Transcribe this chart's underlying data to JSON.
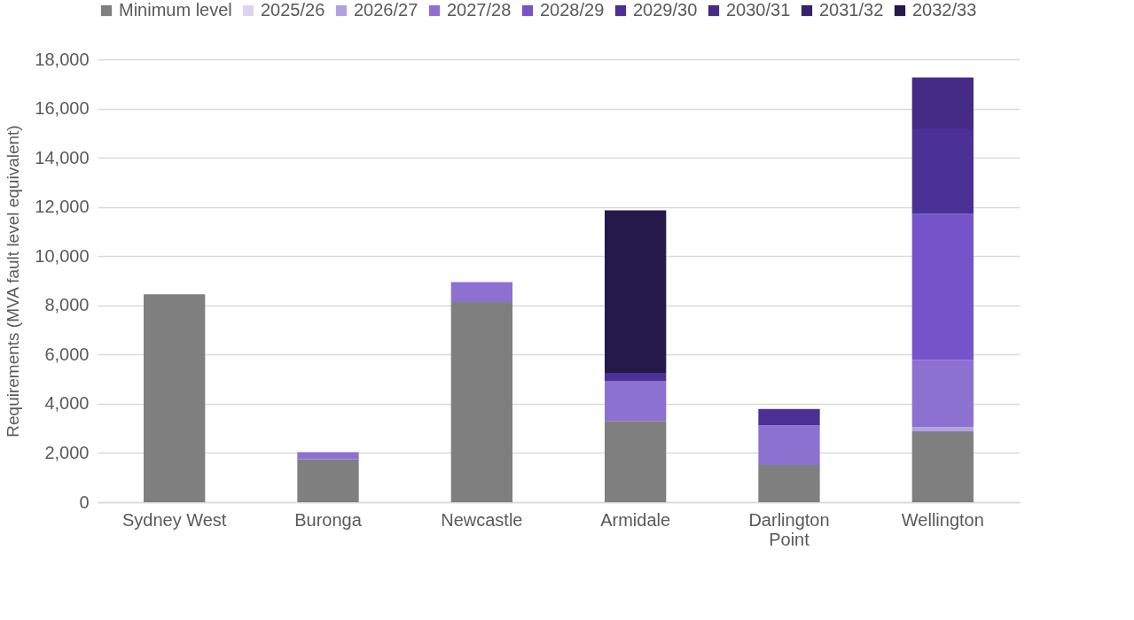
{
  "chart_data": {
    "type": "bar",
    "stacked": true,
    "ylabel": "Requirements (MVA fault level equivalent)",
    "categories": [
      "Sydney West",
      "Buronga",
      "Newcastle",
      "Armidale",
      "Darlington Point",
      "Wellington"
    ],
    "ylim": [
      0,
      18000
    ],
    "yticks": [
      {
        "value": 0,
        "label": "0"
      },
      {
        "value": 2000,
        "label": "2,000"
      },
      {
        "value": 4000,
        "label": "4,000"
      },
      {
        "value": 6000,
        "label": "6,000"
      },
      {
        "value": 8000,
        "label": "8,000"
      },
      {
        "value": 10000,
        "label": "10,000"
      },
      {
        "value": 12000,
        "label": "12,000"
      },
      {
        "value": 14000,
        "label": "14,000"
      },
      {
        "value": 16000,
        "label": "16,000"
      },
      {
        "value": 18000,
        "label": "18,000"
      }
    ],
    "grid": "y",
    "legend": "top",
    "series": [
      {
        "name": "Minimum level",
        "color": "#7f7f7f",
        "values": [
          8450,
          1750,
          8140,
          3300,
          1510,
          2880
        ]
      },
      {
        "name": "2025/26",
        "color": "#dcd3f0",
        "values": [
          null,
          null,
          null,
          null,
          null,
          null
        ]
      },
      {
        "name": "2026/27",
        "color": "#b4a1e1",
        "values": [
          null,
          null,
          null,
          null,
          null,
          170
        ]
      },
      {
        "name": "2027/28",
        "color": "#8d71d0",
        "values": [
          null,
          280,
          810,
          1610,
          1610,
          2740
        ]
      },
      {
        "name": "2028/29",
        "color": "#7553c8",
        "values": [
          null,
          null,
          null,
          null,
          null,
          5930
        ]
      },
      {
        "name": "2029/30",
        "color": "#4b3196",
        "values": [
          null,
          null,
          null,
          350,
          670,
          3440
        ]
      },
      {
        "name": "2030/31",
        "color": "#452b86",
        "values": [
          null,
          null,
          null,
          null,
          null,
          2100
        ]
      },
      {
        "name": "2031/32",
        "color": "#36226a",
        "values": [
          null,
          null,
          null,
          null,
          null,
          null
        ]
      },
      {
        "name": "2032/33",
        "color": "#25194a",
        "values": [
          null,
          null,
          null,
          6600,
          null,
          null
        ]
      }
    ]
  }
}
